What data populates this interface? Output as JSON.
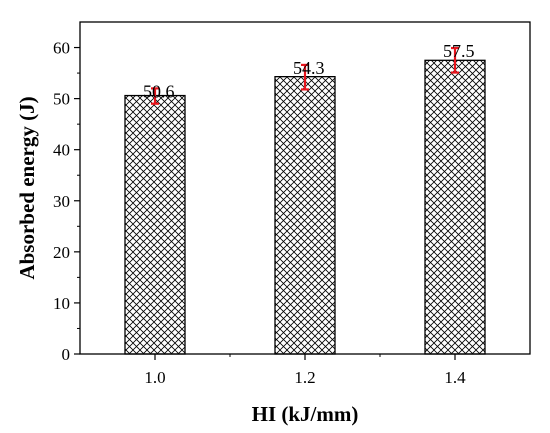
{
  "chart_data": {
    "type": "bar",
    "categories": [
      "1.0",
      "1.2",
      "1.4"
    ],
    "values": [
      50.6,
      54.3,
      57.5
    ],
    "data_labels": [
      "50.6",
      "54.3",
      "57.5"
    ],
    "error_bars": [
      {
        "low": 49.0,
        "high": 52.0
      },
      {
        "low": 51.8,
        "high": 56.6
      },
      {
        "low": 55.1,
        "high": 59.9
      }
    ],
    "xlabel": "HI (kJ/mm)",
    "ylabel": "Absorbed energy (J)",
    "ylim": [
      0,
      65
    ],
    "yticks": [
      0,
      10,
      20,
      30,
      40,
      50,
      60
    ],
    "ytick_labels": [
      "0",
      "10",
      "20",
      "30",
      "40",
      "50",
      "60"
    ],
    "bar_fill": "crosshatch",
    "colors": {
      "bar_edge": "#000000",
      "hatch": "#000000",
      "error_bar": "#e8141c",
      "axis": "#000000"
    },
    "grid": false
  }
}
